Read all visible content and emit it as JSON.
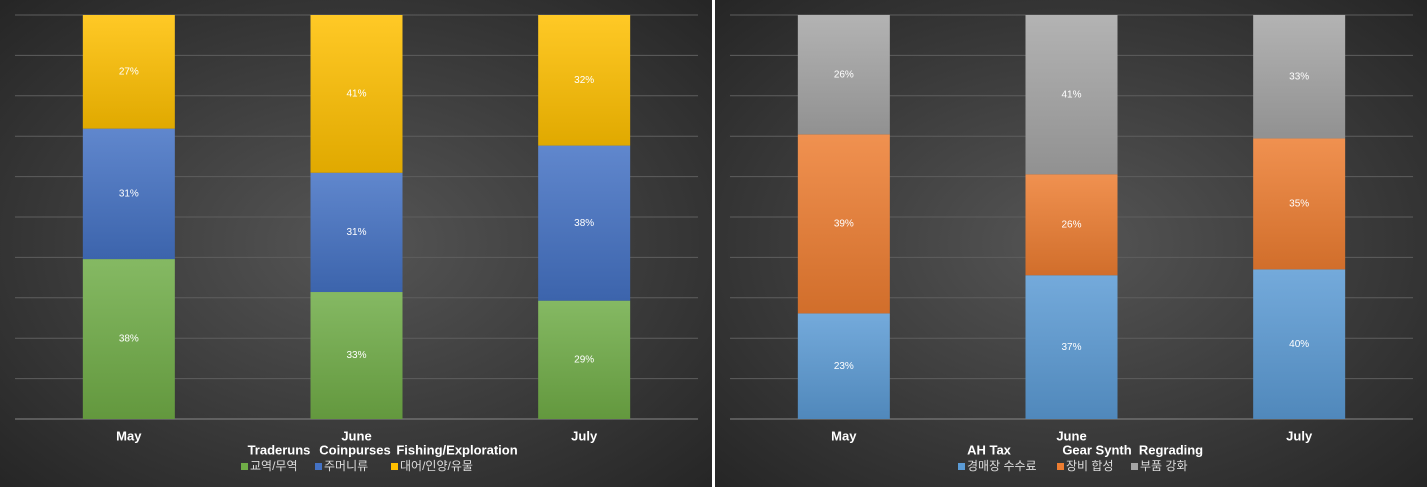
{
  "chart_data": [
    {
      "type": "stacked_percent_bar",
      "categories": [
        "May",
        "June",
        "July"
      ],
      "series": [
        {
          "name": "교역/무역",
          "color": "#70ad47",
          "values": [
            38,
            33,
            29
          ],
          "value_labels": [
            "38%",
            "33%",
            "29%"
          ]
        },
        {
          "name": "주머니류",
          "color": "#4472c4",
          "values": [
            31,
            31,
            38
          ],
          "value_labels": [
            "31%",
            "31%",
            "38%"
          ]
        },
        {
          "name": "대어/인양/유물",
          "color": "#ffc000",
          "values": [
            27,
            41,
            32
          ],
          "value_labels": [
            "27%",
            "41%",
            "32%"
          ]
        }
      ],
      "annotations": [
        "Traderuns",
        "Coinpurses",
        "Fishing/Exploration"
      ],
      "ylim": [
        0,
        100
      ],
      "yticks": [
        0,
        10,
        20,
        30,
        40,
        50,
        60,
        70,
        80,
        90,
        100
      ],
      "grid": true,
      "legend": "bottom"
    },
    {
      "type": "stacked_percent_bar",
      "categories": [
        "May",
        "June",
        "July"
      ],
      "series": [
        {
          "name": "경매장 수수료",
          "color": "#5b9bd5",
          "values": [
            23,
            37,
            40
          ],
          "value_labels": [
            "23%",
            "37%",
            "40%"
          ]
        },
        {
          "name": "장비 합성",
          "color": "#ed7d31",
          "values": [
            39,
            26,
            35
          ],
          "value_labels": [
            "39%",
            "26%",
            "35%"
          ]
        },
        {
          "name": "부품 강화",
          "color": "#a5a5a5",
          "values": [
            26,
            41,
            33
          ],
          "value_labels": [
            "26%",
            "41%",
            "33%"
          ]
        }
      ],
      "annotations": [
        "AH Tax",
        "Gear Synth",
        "Regrading"
      ],
      "ylim": [
        0,
        100
      ],
      "yticks": [
        0,
        10,
        20,
        30,
        40,
        50,
        60,
        70,
        80,
        90,
        100
      ],
      "grid": true,
      "legend": "bottom"
    }
  ]
}
